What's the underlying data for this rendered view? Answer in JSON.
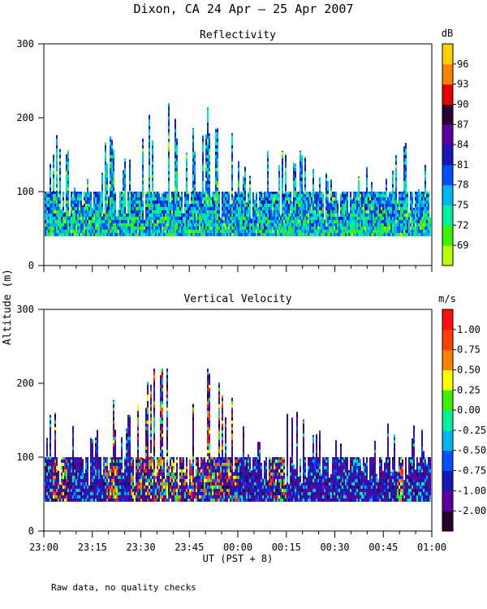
{
  "title": "Dixon, CA 24 Apr — 25 Apr 2007",
  "xlabel": "UT  (PST + 8)",
  "ylabel": "Altitude (m)",
  "note": "Raw data, no quality checks",
  "chart_data": [
    {
      "type": "heatmap",
      "title": "Reflectivity",
      "ylabel": "Altitude (m)",
      "xlabel": "UT  (PST + 8)",
      "x_ticks": [
        "23:00",
        "23:15",
        "23:30",
        "23:45",
        "00:00",
        "00:15",
        "00:30",
        "00:45",
        "01:00"
      ],
      "x_range": [
        "23:00",
        "01:00"
      ],
      "y_ticks": [
        0,
        100,
        200,
        300
      ],
      "ylim": [
        0,
        300
      ],
      "data_floor_m": 40,
      "max_echo_top_m": 220,
      "colorbar": {
        "unit": "dB",
        "tick_labels": [
          "69",
          "72",
          "75",
          "78",
          "81",
          "84",
          "87",
          "90",
          "93",
          "96"
        ],
        "colors": [
          "#b4ff00",
          "#3cf000",
          "#00f0a0",
          "#00b4f0",
          "#0050ff",
          "#1a18b0",
          "#5a00a0",
          "#2a0030",
          "#e00000",
          "#ff8000",
          "#ffd000"
        ]
      },
      "echo_top_profile": {
        "times": [
          "23:00",
          "23:05",
          "23:10",
          "23:15",
          "23:20",
          "23:25",
          "23:30",
          "23:35",
          "23:38",
          "23:41",
          "23:45",
          "23:50",
          "23:55",
          "00:00",
          "00:05",
          "00:10",
          "00:15",
          "00:20",
          "00:25",
          "00:30",
          "00:35",
          "00:40",
          "00:45",
          "00:50",
          "00:55",
          "01:00"
        ],
        "tops_m": [
          120,
          180,
          110,
          120,
          160,
          140,
          170,
          200,
          220,
          190,
          160,
          200,
          180,
          150,
          100,
          160,
          150,
          140,
          120,
          120,
          100,
          120,
          120,
          160,
          120,
          120
        ]
      }
    },
    {
      "type": "heatmap",
      "title": "Vertical Velocity",
      "ylabel": "Altitude (m)",
      "xlabel": "UT  (PST + 8)",
      "x_ticks": [
        "23:00",
        "23:15",
        "23:30",
        "23:45",
        "00:00",
        "00:15",
        "00:30",
        "00:45",
        "01:00"
      ],
      "x_range": [
        "23:00",
        "01:00"
      ],
      "y_ticks": [
        0,
        100,
        200,
        300
      ],
      "ylim": [
        0,
        300
      ],
      "data_floor_m": 40,
      "max_echo_top_m": 220,
      "colorbar": {
        "unit": "m/s",
        "tick_labels": [
          "-2.00",
          "-1.00",
          "-0.75",
          "-0.50",
          "-0.25",
          "0.00",
          "0.25",
          "0.50",
          "0.75",
          "1.00"
        ],
        "colors": [
          "#2a0028",
          "#5a00a0",
          "#1a18b0",
          "#0050ff",
          "#00b4f0",
          "#00f0a0",
          "#3cf000",
          "#ffff00",
          "#ff8000",
          "#ff4000",
          "#ff1010"
        ]
      },
      "echo_top_profile": {
        "times": [
          "23:00",
          "23:05",
          "23:10",
          "23:15",
          "23:20",
          "23:25",
          "23:30",
          "23:35",
          "23:38",
          "23:41",
          "23:45",
          "23:50",
          "23:55",
          "00:00",
          "00:05",
          "00:10",
          "00:15",
          "00:20",
          "00:25",
          "00:30",
          "00:35",
          "00:40",
          "00:45",
          "00:50",
          "00:55",
          "01:00"
        ],
        "tops_m": [
          120,
          180,
          110,
          120,
          160,
          140,
          170,
          200,
          220,
          190,
          160,
          200,
          180,
          150,
          100,
          160,
          150,
          140,
          120,
          120,
          100,
          120,
          120,
          160,
          120,
          120
        ]
      }
    }
  ]
}
